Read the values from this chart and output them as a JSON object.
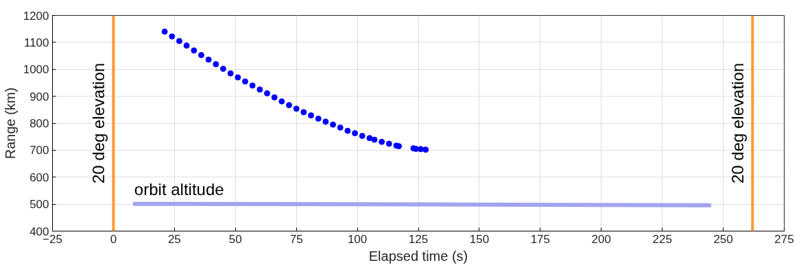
{
  "chart_data": {
    "type": "scatter",
    "xlabel": "Elapsed time (s)",
    "ylabel": "Range (km)",
    "xlim": [
      -25,
      275
    ],
    "xticks": [
      -25,
      0,
      25,
      50,
      75,
      100,
      125,
      150,
      175,
      200,
      225,
      250,
      275
    ],
    "ylim": [
      400,
      1200
    ],
    "yticks": [
      400,
      500,
      600,
      700,
      800,
      900,
      1000,
      1100,
      1200
    ],
    "grid": true,
    "series": [
      {
        "marker": "circle",
        "color": "#0000ff",
        "x": [
          21,
          24,
          27,
          30,
          33,
          36,
          39,
          42,
          45,
          48,
          51,
          54,
          57,
          60,
          63,
          66,
          69,
          72,
          75,
          78,
          81,
          84,
          87,
          90,
          93,
          96,
          99,
          102,
          105,
          107,
          110,
          113,
          116,
          117,
          123,
          124,
          126,
          128
        ],
        "values": [
          1140,
          1122,
          1105,
          1088,
          1070,
          1053,
          1036,
          1019,
          1002,
          985,
          970,
          955,
          940,
          925,
          911,
          896,
          881,
          867,
          854,
          841,
          829,
          817,
          806,
          795,
          784,
          772,
          763,
          753,
          745,
          739,
          731,
          724,
          717,
          715,
          707,
          705,
          704,
          702
        ]
      },
      {
        "type": "line",
        "name": "orbit altitude",
        "color": "#a3a3ee",
        "x": [
          8,
          125,
          245
        ],
        "values": [
          501,
          499,
          496
        ]
      }
    ],
    "ref_lines": [
      {
        "axis": "x",
        "value": 0,
        "label": "20 deg elevation",
        "color": "#ff9933"
      },
      {
        "axis": "x",
        "value": 262,
        "label": "20 deg elevation",
        "color": "#ff9933"
      }
    ]
  }
}
